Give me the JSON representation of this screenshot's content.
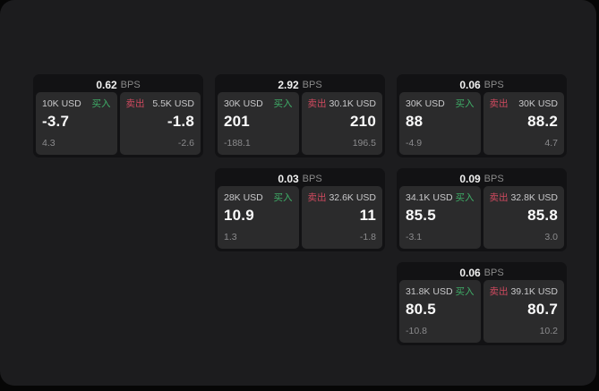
{
  "page": {
    "bps_suffix": "BPS"
  },
  "labels": {
    "buy": "买入",
    "sell": "卖出"
  },
  "colors": {
    "window_bg": "#1c1c1e",
    "card_bg": "#121214",
    "panel_bg": "#2b2b2c",
    "buy_green": "#3fae68",
    "sell_red": "#cf4a5f"
  },
  "cards": [
    {
      "row": 1,
      "col": 1,
      "bps": "0.62",
      "buy": {
        "amount": "10K USD",
        "value": "-3.7",
        "delta": "4.3"
      },
      "sell": {
        "amount": "5.5K USD",
        "value": "-1.8",
        "delta": "-2.6"
      }
    },
    {
      "row": 1,
      "col": 2,
      "bps": "2.92",
      "buy": {
        "amount": "30K USD",
        "value": "201",
        "delta": "-188.1"
      },
      "sell": {
        "amount": "30.1K USD",
        "value": "210",
        "delta": "196.5"
      }
    },
    {
      "row": 1,
      "col": 3,
      "bps": "0.06",
      "buy": {
        "amount": "30K USD",
        "value": "88",
        "delta": "-4.9"
      },
      "sell": {
        "amount": "30K USD",
        "value": "88.2",
        "delta": "4.7"
      }
    },
    {
      "row": 2,
      "col": 2,
      "bps": "0.03",
      "buy": {
        "amount": "28K USD",
        "value": "10.9",
        "delta": "1.3"
      },
      "sell": {
        "amount": "32.6K USD",
        "value": "11",
        "delta": "-1.8"
      }
    },
    {
      "row": 2,
      "col": 3,
      "bps": "0.09",
      "buy": {
        "amount": "34.1K USD",
        "value": "85.5",
        "delta": "-3.1"
      },
      "sell": {
        "amount": "32.8K USD",
        "value": "85.8",
        "delta": "3.0"
      }
    },
    {
      "row": 3,
      "col": 3,
      "bps": "0.06",
      "buy": {
        "amount": "31.8K USD",
        "value": "80.5",
        "delta": "-10.8"
      },
      "sell": {
        "amount": "39.1K USD",
        "value": "80.7",
        "delta": "10.2"
      }
    }
  ]
}
